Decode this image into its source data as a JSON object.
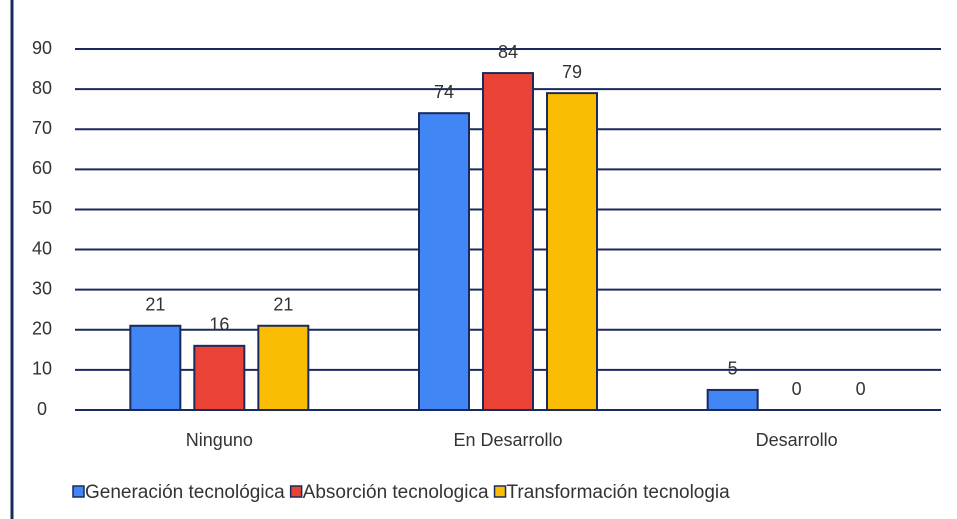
{
  "chart_data": {
    "type": "bar",
    "categories": [
      "Ninguno",
      "En Desarrollo",
      "Desarrollo"
    ],
    "series": [
      {
        "name": "Generación tecnológica",
        "color": "#4285f4",
        "values": [
          21,
          74,
          5
        ]
      },
      {
        "name": "Absorción tecnologica",
        "color": "#ea4335",
        "values": [
          16,
          84,
          0
        ]
      },
      {
        "name": "Transformación tecnologia",
        "color": "#fbbc04",
        "values": [
          21,
          79,
          0
        ]
      }
    ],
    "ylim": [
      0,
      90
    ],
    "yticks": [
      0,
      10,
      20,
      30,
      40,
      50,
      60,
      70,
      80,
      90
    ],
    "grid": true
  }
}
